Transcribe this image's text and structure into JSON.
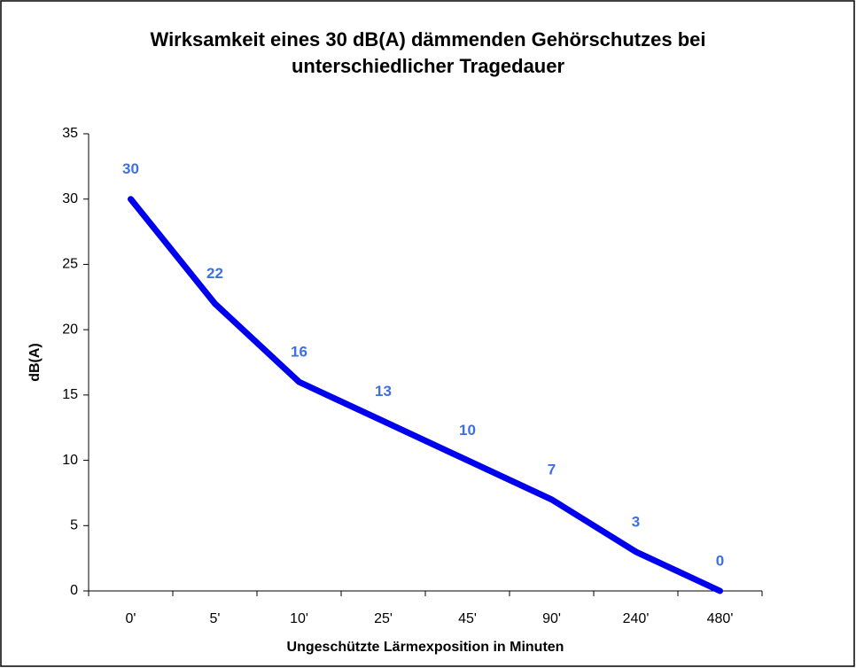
{
  "chart_data": {
    "type": "line",
    "title": "Wirksamkeit eines 30 dB(A) dämmenden Gehörschutzes bei unterschiedlicher Tragedauer",
    "x_label": "Ungeschützte Lärmexposition in Minuten",
    "y_label": "dB(A)",
    "categories": [
      "0'",
      "5'",
      "10'",
      "25'",
      "45'",
      "90'",
      "240'",
      "480'"
    ],
    "series": [
      {
        "name": "dB(A)",
        "color": "#0000ee",
        "values": [
          30,
          22,
          16,
          13,
          10,
          7,
          3,
          0
        ]
      }
    ],
    "ylim": [
      0,
      35
    ],
    "yticks": [
      0,
      5,
      10,
      15,
      20,
      25,
      30,
      35
    ],
    "grid": false
  }
}
